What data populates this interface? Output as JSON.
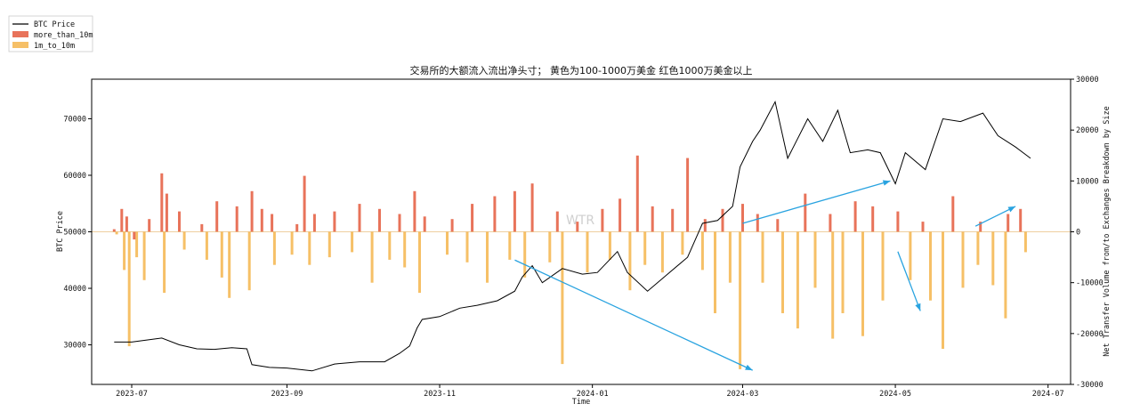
{
  "chart_data": {
    "type": "bar",
    "title": "交易所的大额流入流出净头寸； 黄色为100-1000万美金 红色1000万美金以上",
    "xlabel": "Time",
    "ylabel_left": "BTC Price",
    "ylabel_right": "Net Transfer Volume from/to Exchanges Breakdown by Size",
    "watermark": "WTR",
    "x_range": [
      "2023-06-15",
      "2024-07-10"
    ],
    "x_ticks": [
      "2023-07",
      "2023-09",
      "2023-11",
      "2024-01",
      "2024-03",
      "2024-05",
      "2024-07"
    ],
    "x_tick_dates": [
      "2023-07-01",
      "2023-09-01",
      "2023-11-01",
      "2024-01-01",
      "2024-03-01",
      "2024-05-01",
      "2024-07-01"
    ],
    "y_left": {
      "range": [
        23000,
        77000
      ],
      "ticks": [
        30000,
        40000,
        50000,
        60000,
        70000
      ]
    },
    "y_right": {
      "range": [
        -30000,
        30000
      ],
      "ticks": [
        30000,
        20000,
        10000,
        0,
        -10000,
        -20000,
        -30000
      ]
    },
    "grid": false,
    "legend": {
      "position": "top-left",
      "entries": [
        {
          "label": "BTC Price",
          "color": "#000000",
          "kind": "line"
        },
        {
          "label": "more_than_10m",
          "color": "#e8735a",
          "kind": "patch"
        },
        {
          "label": "1m_to_10m",
          "color": "#f6c067",
          "kind": "patch"
        }
      ]
    },
    "series": [
      {
        "name": "BTC Price",
        "axis": "left",
        "kind": "line",
        "color": "#000000",
        "points": [
          [
            "2023-06-24",
            30500
          ],
          [
            "2023-07-01",
            30500
          ],
          [
            "2023-07-06",
            30800
          ],
          [
            "2023-07-13",
            31200
          ],
          [
            "2023-07-20",
            30000
          ],
          [
            "2023-07-27",
            29300
          ],
          [
            "2023-08-03",
            29200
          ],
          [
            "2023-08-10",
            29500
          ],
          [
            "2023-08-16",
            29300
          ],
          [
            "2023-08-18",
            26500
          ],
          [
            "2023-08-25",
            26000
          ],
          [
            "2023-09-01",
            25900
          ],
          [
            "2023-09-11",
            25400
          ],
          [
            "2023-09-20",
            26600
          ],
          [
            "2023-09-30",
            27000
          ],
          [
            "2023-10-10",
            27000
          ],
          [
            "2023-10-16",
            28500
          ],
          [
            "2023-10-20",
            29800
          ],
          [
            "2023-10-23",
            33000
          ],
          [
            "2023-10-25",
            34500
          ],
          [
            "2023-11-01",
            35000
          ],
          [
            "2023-11-09",
            36500
          ],
          [
            "2023-11-16",
            37000
          ],
          [
            "2023-11-24",
            37800
          ],
          [
            "2023-12-01",
            39500
          ],
          [
            "2023-12-04",
            42000
          ],
          [
            "2023-12-08",
            44000
          ],
          [
            "2023-12-12",
            41000
          ],
          [
            "2023-12-20",
            43500
          ],
          [
            "2023-12-28",
            42500
          ],
          [
            "2024-01-03",
            42800
          ],
          [
            "2024-01-11",
            46500
          ],
          [
            "2024-01-15",
            42800
          ],
          [
            "2024-01-23",
            39500
          ],
          [
            "2024-01-31",
            42500
          ],
          [
            "2024-02-08",
            45500
          ],
          [
            "2024-02-14",
            51500
          ],
          [
            "2024-02-20",
            52000
          ],
          [
            "2024-02-26",
            54500
          ],
          [
            "2024-02-29",
            61500
          ],
          [
            "2024-03-05",
            66000
          ],
          [
            "2024-03-08",
            68000
          ],
          [
            "2024-03-14",
            73000
          ],
          [
            "2024-03-19",
            63000
          ],
          [
            "2024-03-27",
            70000
          ],
          [
            "2024-04-02",
            66000
          ],
          [
            "2024-04-08",
            71500
          ],
          [
            "2024-04-13",
            64000
          ],
          [
            "2024-04-20",
            64500
          ],
          [
            "2024-04-25",
            64000
          ],
          [
            "2024-05-01",
            58500
          ],
          [
            "2024-05-05",
            64000
          ],
          [
            "2024-05-13",
            61000
          ],
          [
            "2024-05-20",
            70000
          ],
          [
            "2024-05-27",
            69500
          ],
          [
            "2024-06-05",
            71000
          ],
          [
            "2024-06-11",
            67000
          ],
          [
            "2024-06-18",
            65000
          ],
          [
            "2024-06-24",
            63000
          ]
        ]
      },
      {
        "name": "more_than_10m",
        "axis": "right",
        "kind": "bar",
        "color": "#e8735a",
        "points": [
          [
            "2023-06-24",
            500
          ],
          [
            "2023-06-27",
            4500
          ],
          [
            "2023-06-29",
            3000
          ],
          [
            "2023-07-02",
            -1500
          ],
          [
            "2023-07-08",
            2500
          ],
          [
            "2023-07-13",
            11500
          ],
          [
            "2023-07-15",
            7500
          ],
          [
            "2023-07-20",
            4000
          ],
          [
            "2023-07-29",
            1500
          ],
          [
            "2023-08-04",
            6000
          ],
          [
            "2023-08-12",
            5000
          ],
          [
            "2023-08-18",
            8000
          ],
          [
            "2023-08-22",
            4500
          ],
          [
            "2023-08-26",
            3500
          ],
          [
            "2023-09-05",
            1500
          ],
          [
            "2023-09-08",
            11000
          ],
          [
            "2023-09-12",
            3500
          ],
          [
            "2023-09-20",
            4000
          ],
          [
            "2023-09-30",
            5500
          ],
          [
            "2023-10-08",
            4500
          ],
          [
            "2023-10-16",
            3500
          ],
          [
            "2023-10-22",
            8000
          ],
          [
            "2023-10-26",
            3000
          ],
          [
            "2023-11-06",
            2500
          ],
          [
            "2023-11-14",
            5500
          ],
          [
            "2023-11-23",
            7000
          ],
          [
            "2023-12-01",
            8000
          ],
          [
            "2023-12-08",
            9500
          ],
          [
            "2023-12-18",
            4000
          ],
          [
            "2023-12-26",
            2000
          ],
          [
            "2024-01-05",
            4500
          ],
          [
            "2024-01-12",
            6500
          ],
          [
            "2024-01-19",
            15000
          ],
          [
            "2024-01-25",
            5000
          ],
          [
            "2024-02-02",
            4500
          ],
          [
            "2024-02-08",
            14500
          ],
          [
            "2024-02-15",
            2500
          ],
          [
            "2024-02-22",
            4500
          ],
          [
            "2024-03-01",
            5500
          ],
          [
            "2024-03-07",
            3500
          ],
          [
            "2024-03-15",
            2500
          ],
          [
            "2024-03-26",
            7500
          ],
          [
            "2024-04-05",
            3500
          ],
          [
            "2024-04-15",
            6000
          ],
          [
            "2024-04-22",
            5000
          ],
          [
            "2024-05-02",
            4000
          ],
          [
            "2024-05-12",
            2000
          ],
          [
            "2024-05-24",
            7000
          ],
          [
            "2024-06-04",
            2000
          ],
          [
            "2024-06-15",
            3500
          ],
          [
            "2024-06-20",
            4500
          ]
        ]
      },
      {
        "name": "1m_to_10m",
        "axis": "right",
        "kind": "bar",
        "color": "#f6c067",
        "points": [
          [
            "2023-06-25",
            -500
          ],
          [
            "2023-06-28",
            -7500
          ],
          [
            "2023-06-30",
            -22500
          ],
          [
            "2023-07-03",
            -5000
          ],
          [
            "2023-07-06",
            -9500
          ],
          [
            "2023-07-14",
            -12000
          ],
          [
            "2023-07-22",
            -3500
          ],
          [
            "2023-07-31",
            -5500
          ],
          [
            "2023-08-06",
            -9000
          ],
          [
            "2023-08-09",
            -13000
          ],
          [
            "2023-08-17",
            -11500
          ],
          [
            "2023-08-27",
            -6500
          ],
          [
            "2023-09-03",
            -4500
          ],
          [
            "2023-09-10",
            -6500
          ],
          [
            "2023-09-18",
            -5000
          ],
          [
            "2023-09-27",
            -4000
          ],
          [
            "2023-10-05",
            -10000
          ],
          [
            "2023-10-12",
            -5500
          ],
          [
            "2023-10-18",
            -7000
          ],
          [
            "2023-10-24",
            -12000
          ],
          [
            "2023-11-04",
            -4500
          ],
          [
            "2023-11-12",
            -6000
          ],
          [
            "2023-11-20",
            -10000
          ],
          [
            "2023-11-29",
            -5500
          ],
          [
            "2023-12-05",
            -9000
          ],
          [
            "2023-12-15",
            -6000
          ],
          [
            "2023-12-20",
            -26000
          ],
          [
            "2023-12-30",
            -8000
          ],
          [
            "2024-01-08",
            -5500
          ],
          [
            "2024-01-16",
            -11500
          ],
          [
            "2024-01-22",
            -6500
          ],
          [
            "2024-01-29",
            -8000
          ],
          [
            "2024-02-06",
            -4500
          ],
          [
            "2024-02-14",
            -7500
          ],
          [
            "2024-02-19",
            -16000
          ],
          [
            "2024-02-25",
            -10000
          ],
          [
            "2024-02-29",
            -27000
          ],
          [
            "2024-03-09",
            -10000
          ],
          [
            "2024-03-17",
            -16000
          ],
          [
            "2024-03-23",
            -19000
          ],
          [
            "2024-03-30",
            -11000
          ],
          [
            "2024-04-06",
            -21000
          ],
          [
            "2024-04-10",
            -16000
          ],
          [
            "2024-04-18",
            -20500
          ],
          [
            "2024-04-26",
            -13500
          ],
          [
            "2024-05-07",
            -9500
          ],
          [
            "2024-05-15",
            -13500
          ],
          [
            "2024-05-20",
            -23000
          ],
          [
            "2024-05-28",
            -11000
          ],
          [
            "2024-06-03",
            -6500
          ],
          [
            "2024-06-09",
            -10500
          ],
          [
            "2024-06-14",
            -17000
          ],
          [
            "2024-06-22",
            -4000
          ]
        ]
      }
    ],
    "annotations": [
      {
        "kind": "arrow",
        "color": "#29a3e0",
        "from": [
          "2023-12-01",
          45000
        ],
        "to": [
          "2024-03-05",
          25500
        ],
        "axis": "left"
      },
      {
        "kind": "arrow",
        "color": "#29a3e0",
        "from": [
          "2024-03-01",
          51500
        ],
        "to": [
          "2024-04-29",
          59000
        ],
        "axis": "left"
      },
      {
        "kind": "arrow",
        "color": "#29a3e0",
        "from": [
          "2024-05-02",
          46500
        ],
        "to": [
          "2024-05-11",
          36000
        ],
        "axis": "left"
      },
      {
        "kind": "arrow",
        "color": "#29a3e0",
        "from": [
          "2024-06-02",
          51000
        ],
        "to": [
          "2024-06-18",
          54500
        ],
        "axis": "left"
      }
    ]
  }
}
